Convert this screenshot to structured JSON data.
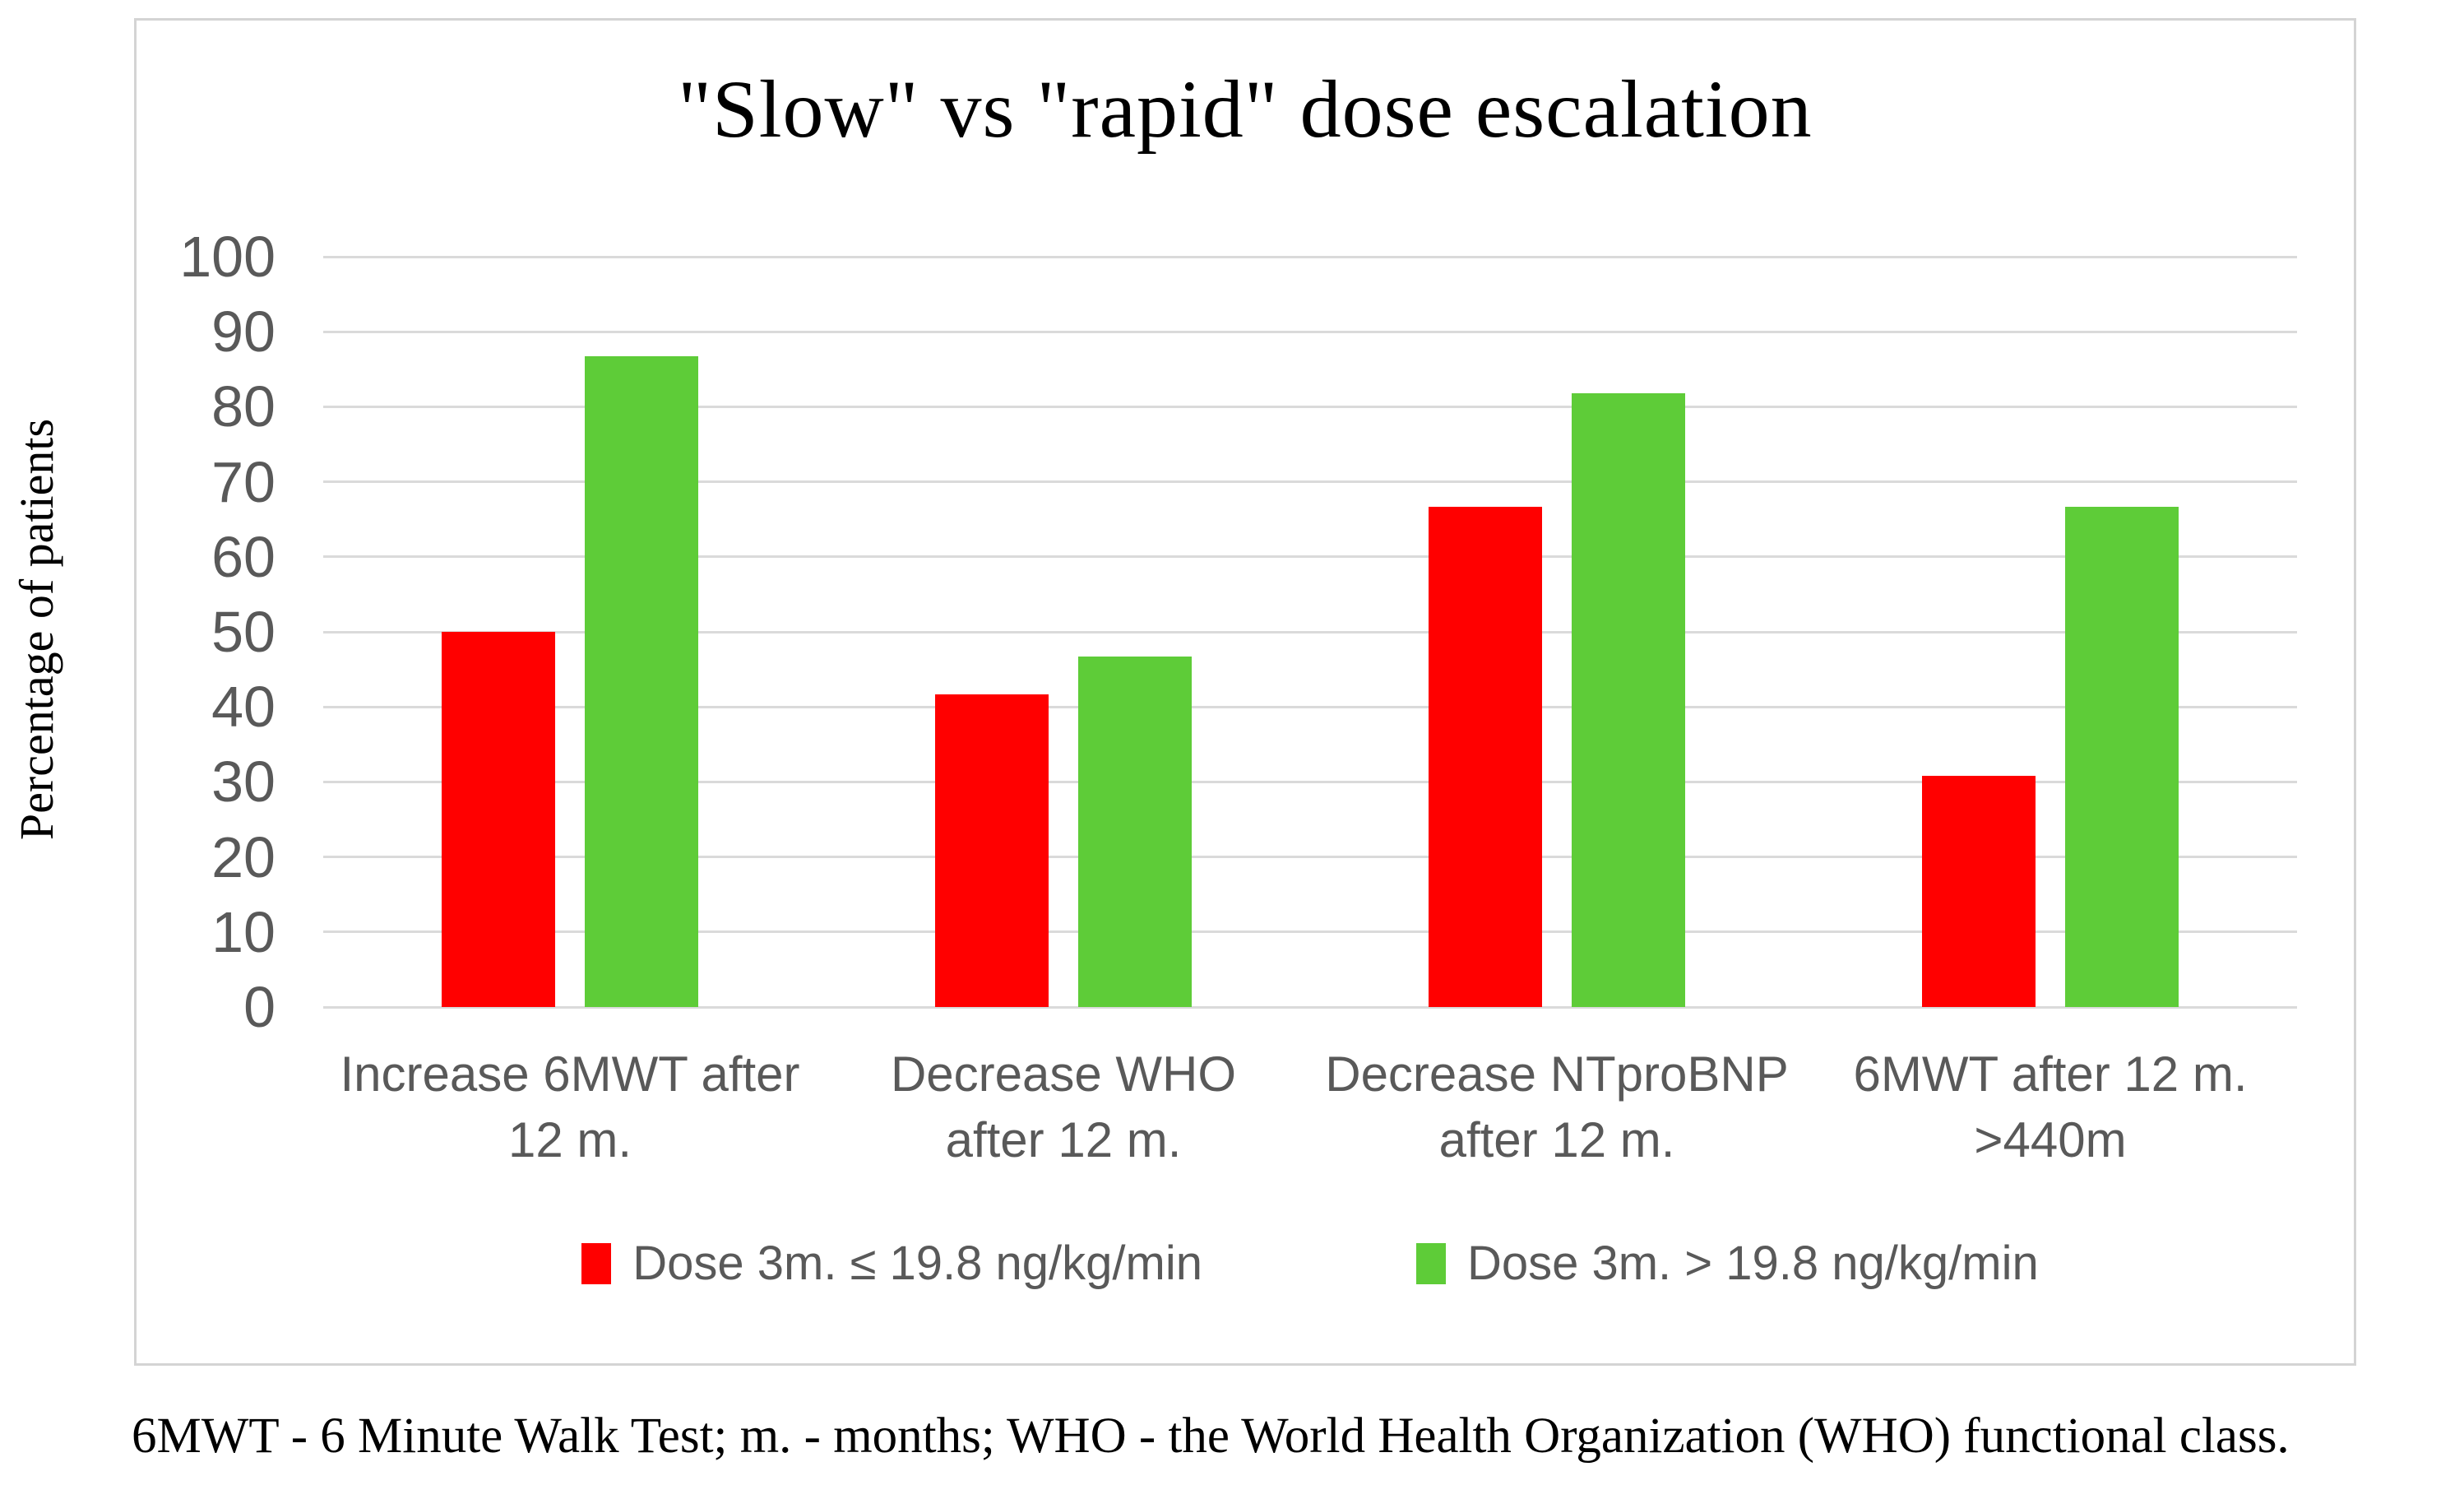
{
  "figure": {
    "title": "\"Slow\" vs \"rapid\" dose escalation",
    "y_axis_title": "Percentage of patients",
    "footnote": "6MWT - 6 Minute Walk Test; m. - months; WHO - the World Health Organization (WHO) functional class."
  },
  "chart_data": {
    "type": "bar",
    "title": "\"Slow\" vs \"rapid\" dose escalation",
    "xlabel": "",
    "ylabel": "Percentage of patients",
    "ylim": [
      0,
      100
    ],
    "yticks": [
      100,
      90,
      80,
      70,
      60,
      50,
      40,
      30,
      20,
      10,
      0
    ],
    "grid": true,
    "legend_position": "bottom",
    "categories": [
      "Increase 6MWT after 12 m.",
      "Decrease WHO after 12 m.",
      "Decrease NTproBNP after 12 m.",
      "6MWT after 12 m. >440m"
    ],
    "categories_wrapped": [
      [
        "Increase 6MWT after",
        "12 m."
      ],
      [
        "Decrease WHO",
        "after 12 m."
      ],
      [
        "Decrease NTproBNP",
        "after 12 m."
      ],
      [
        "6MWT after 12 m.",
        ">440m"
      ]
    ],
    "series": [
      {
        "name": "Dose 3m. ≤ 19.8 ng/kg/min",
        "color": "#FF0000",
        "values": [
          50,
          41.7,
          66.7,
          30.8
        ]
      },
      {
        "name": "Dose 3m. > 19.8 ng/kg/min",
        "color": "#5ECC38",
        "values": [
          86.7,
          46.7,
          81.8,
          66.7
        ]
      }
    ]
  },
  "colors": {
    "grid": "#dadada",
    "box_border": "#d4d4d4",
    "axis_text": "#595959",
    "title_text": "#000000"
  }
}
